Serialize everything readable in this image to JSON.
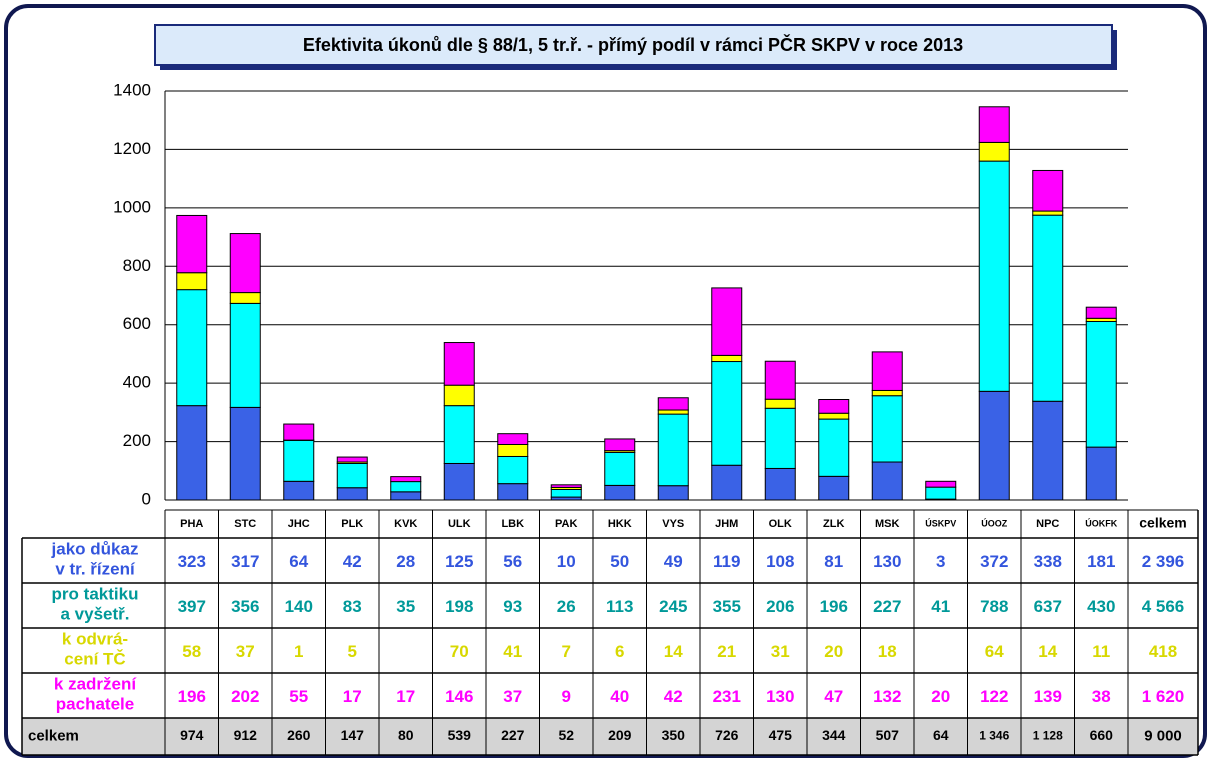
{
  "chart_data": {
    "type": "stacked-bar",
    "title": "Efektivita úkonů dle § 88/1, 5 tr.ř. - přímý podíl v rámci PČR SKPV v roce 2013",
    "categories": [
      "PHA",
      "STC",
      "JHC",
      "PLK",
      "KVK",
      "ULK",
      "LBK",
      "PAK",
      "HKK",
      "VYS",
      "JHM",
      "OLK",
      "ZLK",
      "MSK",
      "ÚSKPV",
      "ÚOOZ",
      "NPC",
      "ÚOKFK"
    ],
    "ylim": [
      0,
      1400
    ],
    "yticks": [
      0,
      200,
      400,
      600,
      800,
      1000,
      1200,
      1400
    ],
    "grid": true,
    "series": [
      {
        "name": "jako důkaz\nv tr. řízení",
        "color": "#3a62e6",
        "label_color": "#3355dd",
        "values": [
          323,
          317,
          64,
          42,
          28,
          125,
          56,
          10,
          50,
          49,
          119,
          108,
          81,
          130,
          3,
          372,
          338,
          181
        ],
        "total": "2 396"
      },
      {
        "name": "pro taktiku\na vyšetř.",
        "color": "#00ffff",
        "label_color": "#009999",
        "values": [
          397,
          356,
          140,
          83,
          35,
          198,
          93,
          26,
          113,
          245,
          355,
          206,
          196,
          227,
          41,
          788,
          637,
          430
        ],
        "total": "4 566"
      },
      {
        "name": "k odvrá-\ncení TČ",
        "color": "#ffff00",
        "label_color": "#d8d800",
        "values": [
          58,
          37,
          1,
          5,
          null,
          70,
          41,
          7,
          6,
          14,
          21,
          31,
          20,
          18,
          null,
          64,
          14,
          11
        ],
        "total": "418"
      },
      {
        "name": "k zadržení\npachatele",
        "color": "#ff00ff",
        "label_color": "#ff00ff",
        "values": [
          196,
          202,
          55,
          17,
          17,
          146,
          37,
          9,
          40,
          42,
          231,
          130,
          47,
          132,
          20,
          122,
          139,
          38
        ],
        "total": "1 620"
      }
    ],
    "total_label": "celkem",
    "totals": [
      974,
      912,
      260,
      147,
      80,
      539,
      227,
      52,
      209,
      350,
      726,
      475,
      344,
      507,
      64,
      "1 346",
      "1 128",
      660
    ],
    "grand_total": "9 000"
  }
}
